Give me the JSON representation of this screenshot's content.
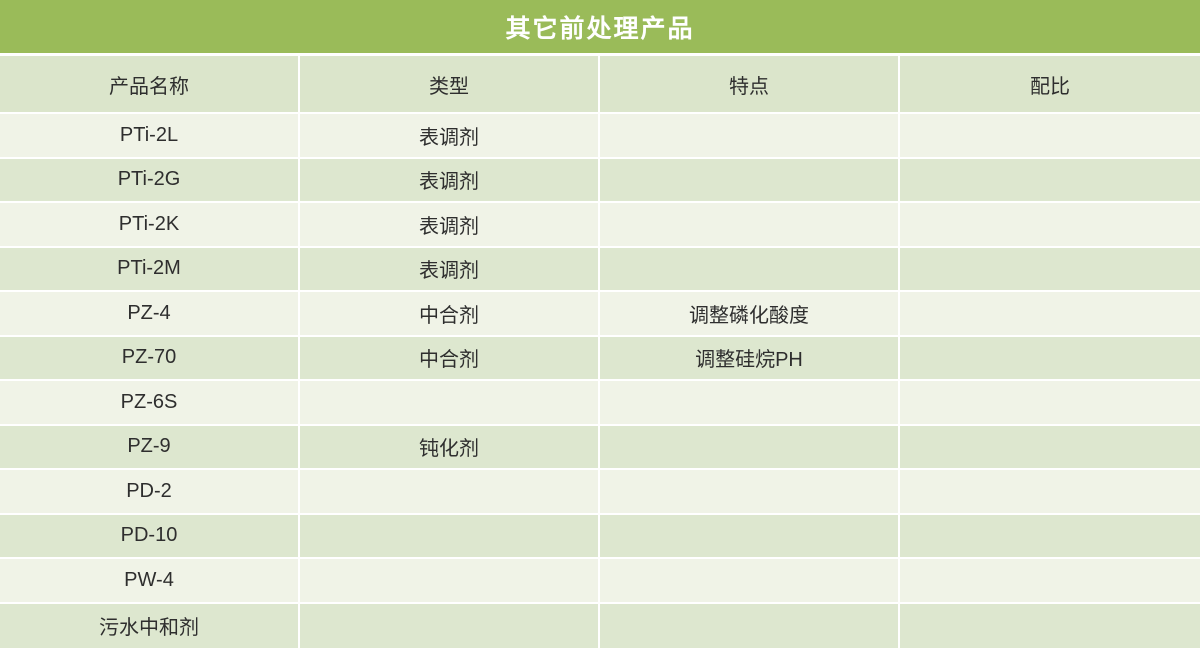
{
  "colors": {
    "title_bg": "#9ABB59",
    "header_bg": "#DBE5CB",
    "row_odd_bg": "#F0F3E7",
    "row_even_bg": "#DDE7CF",
    "title_text": "#FFFFFF",
    "cell_text": "#2E2E2E",
    "separator": "#FFFFFF"
  },
  "table": {
    "title": "其它前处理产品",
    "columns": [
      "产品名称",
      "类型",
      "特点",
      "配比"
    ],
    "rows": [
      {
        "name": "PTi-2L",
        "type": "表调剂",
        "feature": "",
        "ratio": ""
      },
      {
        "name": "PTi-2G",
        "type": "表调剂",
        "feature": "",
        "ratio": ""
      },
      {
        "name": "PTi-2K",
        "type": "表调剂",
        "feature": "",
        "ratio": ""
      },
      {
        "name": "PTi-2M",
        "type": "表调剂",
        "feature": "",
        "ratio": ""
      },
      {
        "name": "PZ-4",
        "type": "中合剂",
        "feature": "调整磷化酸度",
        "ratio": ""
      },
      {
        "name": "PZ-70",
        "type": "中合剂",
        "feature": "调整硅烷PH",
        "ratio": ""
      },
      {
        "name": "PZ-6S",
        "type": "",
        "feature": "",
        "ratio": ""
      },
      {
        "name": "PZ-9",
        "type": "钝化剂",
        "feature": "",
        "ratio": ""
      },
      {
        "name": "PD-2",
        "type": "",
        "feature": "",
        "ratio": ""
      },
      {
        "name": "PD-10",
        "type": "",
        "feature": "",
        "ratio": ""
      },
      {
        "name": "PW-4",
        "type": "",
        "feature": "",
        "ratio": ""
      },
      {
        "name": "污水中和剂",
        "type": "",
        "feature": "",
        "ratio": ""
      }
    ]
  }
}
